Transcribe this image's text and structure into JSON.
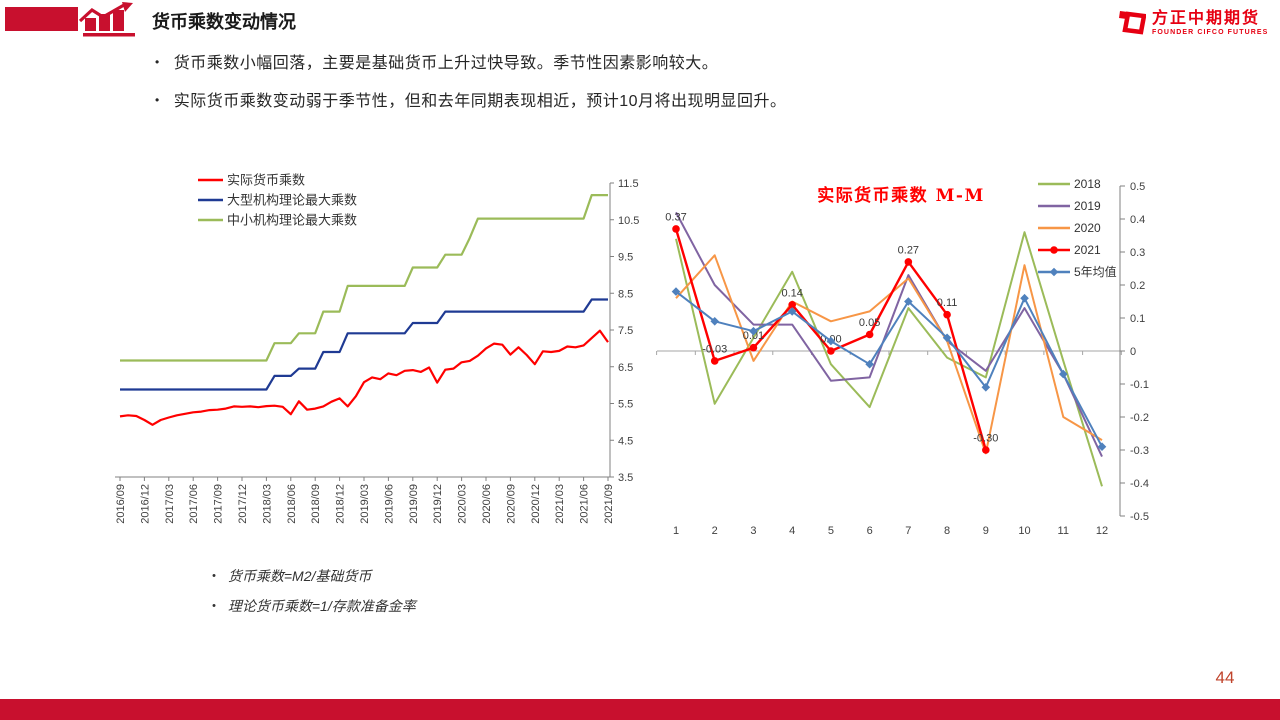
{
  "header": {
    "title": "货币乘数变动情况"
  },
  "logo": {
    "name": "方正中期期货",
    "subtitle": "FOUNDER CIFCO FUTURES"
  },
  "bullets": [
    "货币乘数小幅回落，主要是基础货币上升过快导致。季节性因素影响较大。",
    "实际货币乘数变动弱于季节性，但和去年同期表现相近，预计10月将出现明显回升。"
  ],
  "notes": [
    "货币乘数=M2/基础货币",
    "理论货币乘数=1/存款准备金率"
  ],
  "page_number": "44",
  "colors": {
    "accent_red": "#C8102E",
    "logo_red": "#E60012",
    "page_number_red": "#C0432B"
  },
  "chart_data": [
    {
      "type": "line",
      "title": "",
      "frequency": "monthly",
      "x_start": "2016/09",
      "x_end": "2021/09",
      "x_tick_labels": [
        "2016/09",
        "2016/12",
        "2017/03",
        "2017/06",
        "2017/09",
        "2017/12",
        "2018/03",
        "2018/06",
        "2018/09",
        "2018/12",
        "2019/03",
        "2019/06",
        "2019/09",
        "2019/12",
        "2020/03",
        "2020/06",
        "2020/09",
        "2020/12",
        "2021/03",
        "2021/06",
        "2021/09"
      ],
      "ylim": [
        3.5,
        11.5
      ],
      "ytick_step": 1.0,
      "legend_position": "top-left",
      "series": [
        {
          "name": "实际货币乘数",
          "color": "#FF0000",
          "values": [
            5.15,
            5.18,
            5.16,
            5.05,
            4.92,
            5.05,
            5.12,
            5.18,
            5.22,
            5.26,
            5.28,
            5.32,
            5.33,
            5.36,
            5.42,
            5.41,
            5.42,
            5.4,
            5.43,
            5.44,
            5.41,
            5.21,
            5.56,
            5.33,
            5.36,
            5.42,
            5.55,
            5.64,
            5.42,
            5.7,
            6.08,
            6.21,
            6.16,
            6.32,
            6.27,
            6.39,
            6.41,
            6.36,
            6.48,
            6.07,
            6.42,
            6.45,
            6.62,
            6.66,
            6.8,
            7.0,
            7.13,
            7.1,
            6.83,
            7.03,
            6.82,
            6.57,
            6.92,
            6.9,
            6.93,
            7.05,
            7.03,
            7.08,
            7.28,
            7.48,
            7.17
          ]
        },
        {
          "name": "大型机构理论最大乘数",
          "color": "#1F3A93",
          "values": [
            5.88,
            5.88,
            5.88,
            5.88,
            5.88,
            5.88,
            5.88,
            5.88,
            5.88,
            5.88,
            5.88,
            5.88,
            5.88,
            5.88,
            5.88,
            5.88,
            5.88,
            5.88,
            5.88,
            6.25,
            6.25,
            6.25,
            6.45,
            6.45,
            6.45,
            6.9,
            6.9,
            6.9,
            7.41,
            7.41,
            7.41,
            7.41,
            7.41,
            7.41,
            7.41,
            7.41,
            7.69,
            7.69,
            7.69,
            7.69,
            8.0,
            8.0,
            8.0,
            8.0,
            8.0,
            8.0,
            8.0,
            8.0,
            8.0,
            8.0,
            8.0,
            8.0,
            8.0,
            8.0,
            8.0,
            8.0,
            8.0,
            8.0,
            8.33,
            8.33,
            8.33
          ]
        },
        {
          "name": "中小机构理论最大乘数",
          "color": "#9BBB59",
          "values": [
            6.67,
            6.67,
            6.67,
            6.67,
            6.67,
            6.67,
            6.67,
            6.67,
            6.67,
            6.67,
            6.67,
            6.67,
            6.67,
            6.67,
            6.67,
            6.67,
            6.67,
            6.67,
            6.67,
            7.14,
            7.14,
            7.14,
            7.41,
            7.41,
            7.41,
            8.0,
            8.0,
            8.0,
            8.7,
            8.7,
            8.7,
            8.7,
            8.7,
            8.7,
            8.7,
            8.7,
            9.2,
            9.2,
            9.2,
            9.2,
            9.55,
            9.55,
            9.55,
            10.0,
            10.53,
            10.53,
            10.53,
            10.53,
            10.53,
            10.53,
            10.53,
            10.53,
            10.53,
            10.53,
            10.53,
            10.53,
            10.53,
            10.53,
            11.17,
            11.17,
            11.17
          ]
        }
      ]
    },
    {
      "type": "line",
      "title": "实际货币乘数 M-M",
      "title_color": "#FF0000",
      "x_labels": [
        "1",
        "2",
        "3",
        "4",
        "5",
        "6",
        "7",
        "8",
        "9",
        "10",
        "11",
        "12"
      ],
      "ylim": [
        -0.5,
        0.5
      ],
      "ytick_step": 0.1,
      "legend_position": "top-right",
      "series": [
        {
          "name": "2018",
          "color": "#9BBB59",
          "values": [
            0.34,
            -0.16,
            0.04,
            0.24,
            -0.04,
            -0.17,
            0.13,
            -0.02,
            -0.08,
            0.36,
            -0.03,
            -0.41
          ]
        },
        {
          "name": "2019",
          "color": "#8064A2",
          "values": [
            0.42,
            0.2,
            0.08,
            0.08,
            -0.09,
            -0.08,
            0.23,
            0.03,
            -0.06,
            0.13,
            -0.07,
            -0.32
          ]
        },
        {
          "name": "2020",
          "color": "#F79646",
          "values": [
            0.16,
            0.29,
            -0.03,
            0.15,
            0.09,
            0.12,
            0.22,
            0.03,
            -0.31,
            0.26,
            -0.2,
            -0.27
          ]
        },
        {
          "name": "2021",
          "color": "#FF0000",
          "marker": "circle",
          "values": [
            0.37,
            -0.03,
            0.01,
            0.14,
            0.0,
            0.05,
            0.27,
            0.11,
            -0.3,
            null,
            null,
            null
          ],
          "labels": [
            "0.37",
            "-0.03",
            "0.01",
            "0.14",
            "0.00",
            "0.05",
            "0.27",
            "0.11",
            "-0.30"
          ]
        },
        {
          "name": "5年均值",
          "color": "#4F81BD",
          "marker": "diamond",
          "values": [
            0.18,
            0.09,
            0.06,
            0.12,
            0.03,
            -0.04,
            0.15,
            0.04,
            -0.11,
            0.16,
            -0.07,
            -0.29
          ]
        }
      ]
    }
  ]
}
